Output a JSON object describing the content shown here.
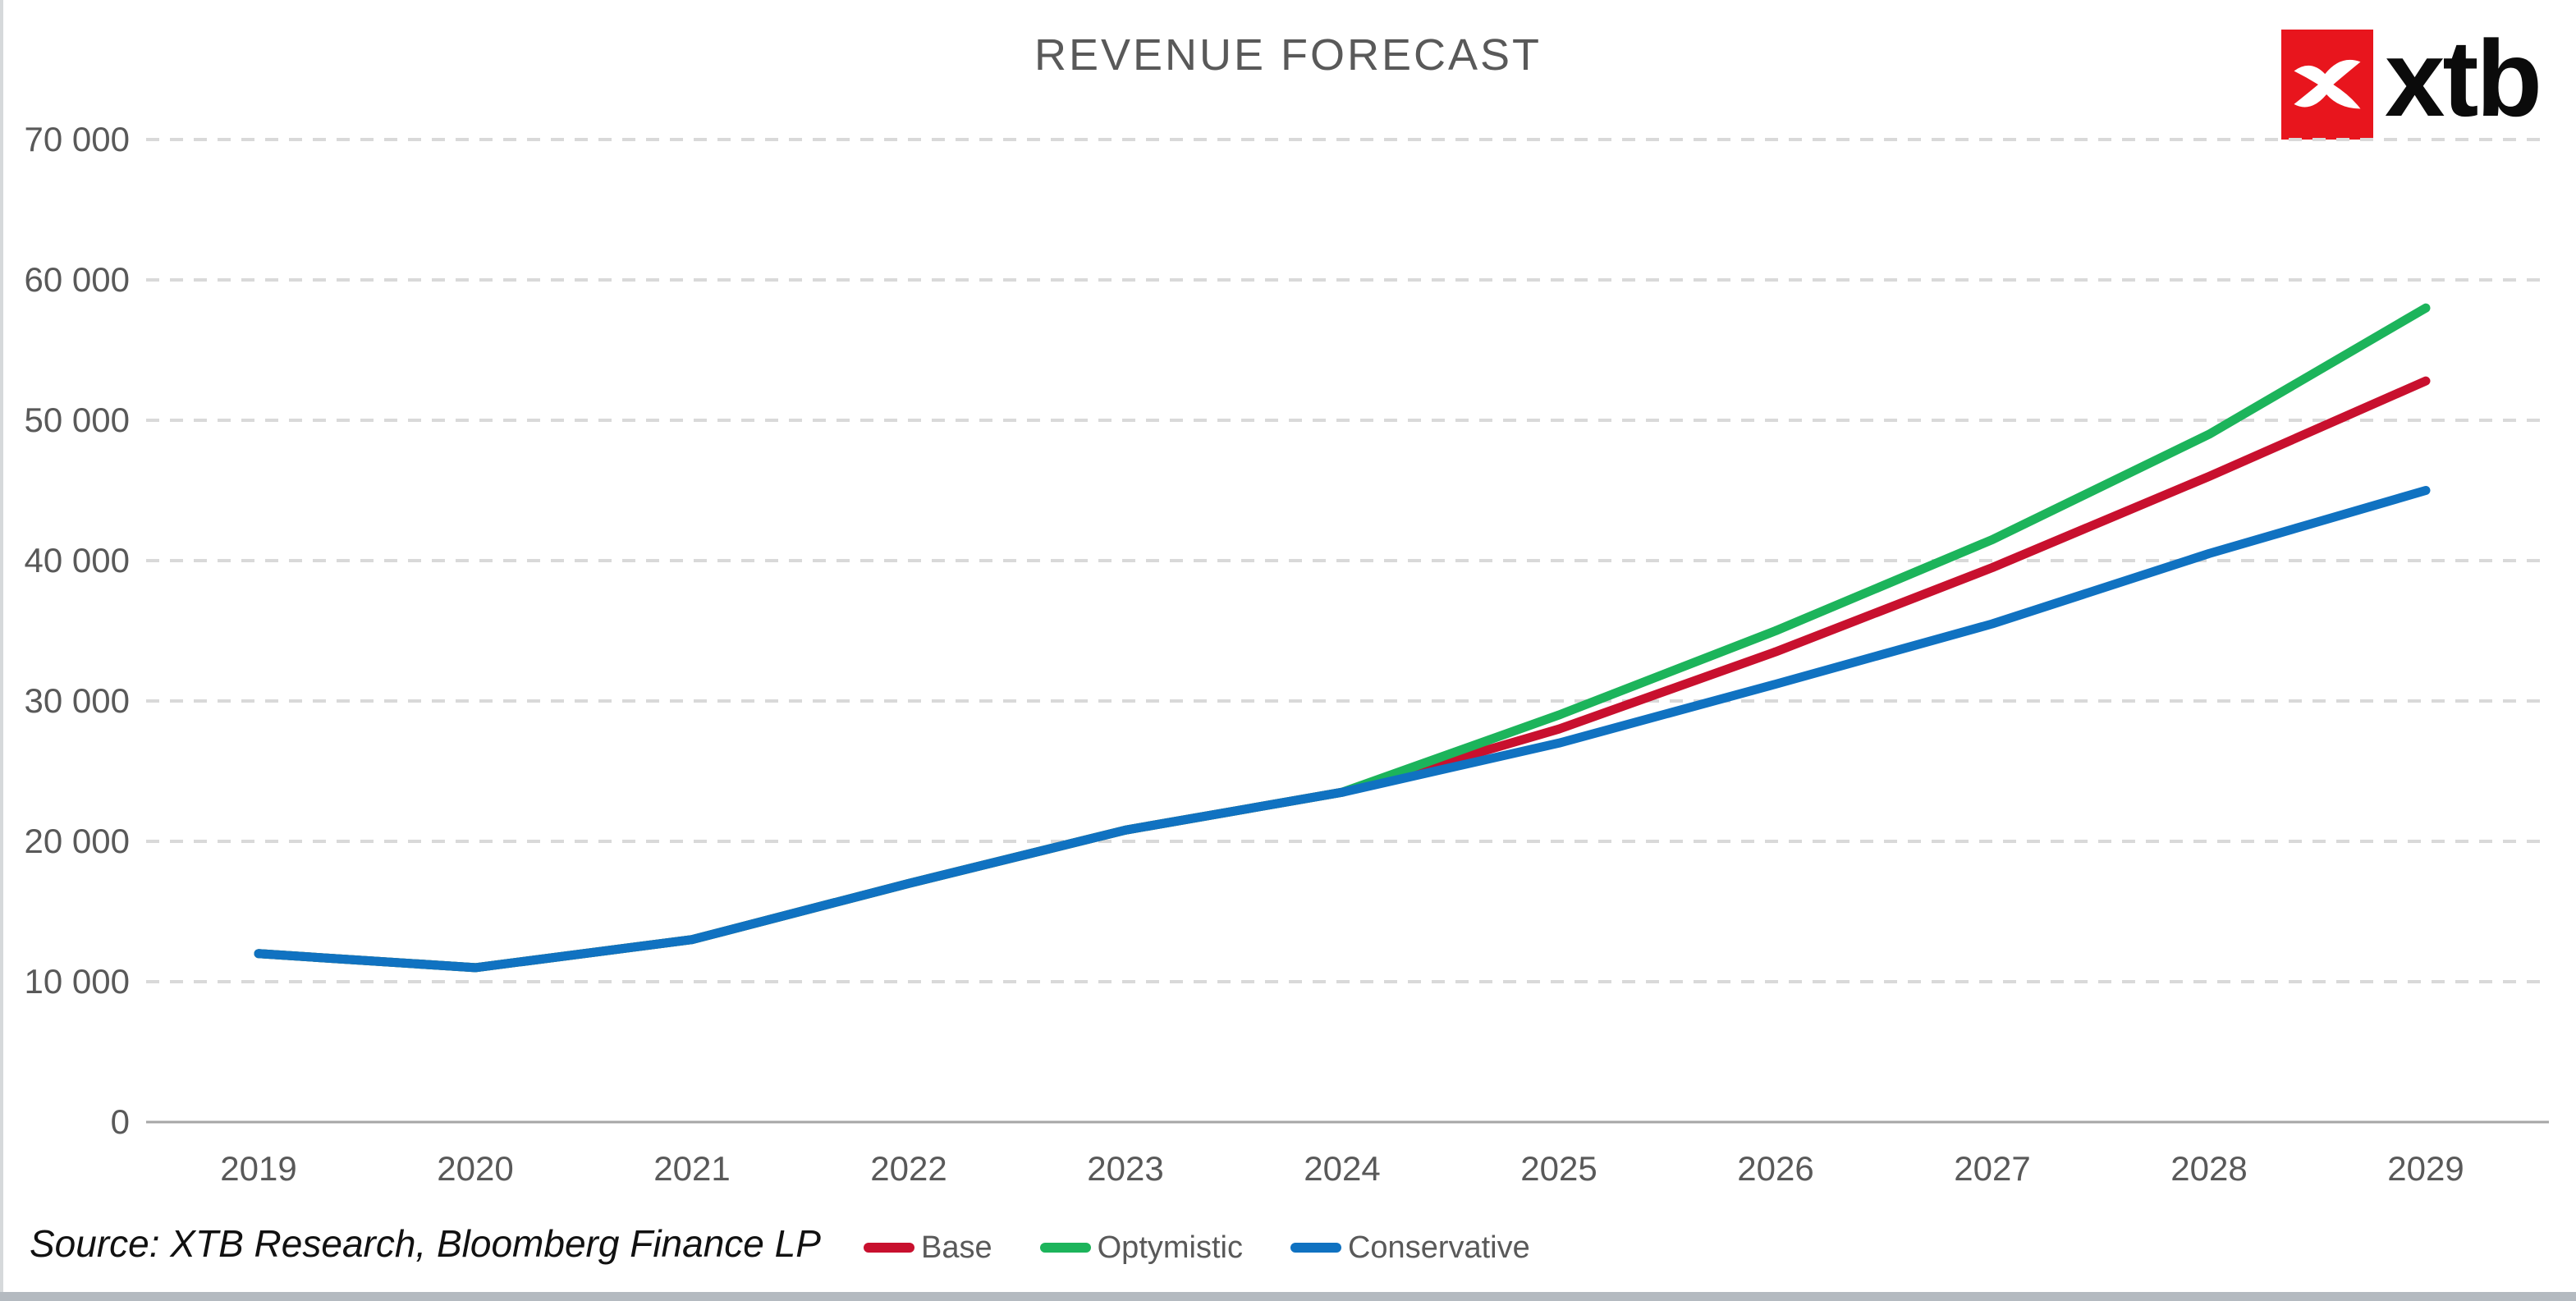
{
  "logo": {
    "text": "xtb",
    "box_color": "#e8151d",
    "mark": "xtb-x-mark"
  },
  "source_note": "Source: XTB Research, Bloomberg Finance LP",
  "colors": {
    "title_text": "#595959",
    "axis_labels": "#595959",
    "gridline": "#d9d9d9",
    "axis_line": "#a6a6a6",
    "base": "#c8102e",
    "optymistic": "#1cb45b",
    "conservative": "#1072c1"
  },
  "chart_data": {
    "type": "line",
    "title": "REVENUE FORECAST",
    "categories": [
      "2019",
      "2020",
      "2021",
      "2022",
      "2023",
      "2024",
      "2025",
      "2026",
      "2027",
      "2028",
      "2029"
    ],
    "series": [
      {
        "name": "Base",
        "color": "#c8102e",
        "values": [
          12000,
          11000,
          13000,
          17000,
          20800,
          23500,
          28000,
          33500,
          39500,
          46000,
          52800
        ]
      },
      {
        "name": "Optymistic",
        "color": "#1cb45b",
        "values": [
          12000,
          11000,
          13000,
          17000,
          20800,
          23500,
          29000,
          35000,
          41500,
          49000,
          58000
        ]
      },
      {
        "name": "Conservative",
        "color": "#1072c1",
        "values": [
          12000,
          11000,
          13000,
          17000,
          20800,
          23500,
          27000,
          31200,
          35500,
          40500,
          45000
        ]
      }
    ],
    "draw_order": [
      "Base",
      "Optymistic",
      "Conservative"
    ],
    "ylim": [
      0,
      70000
    ],
    "ytick_step": 10000,
    "y_ticks": [
      {
        "value": 0,
        "label": "0"
      },
      {
        "value": 10000,
        "label": "10 000"
      },
      {
        "value": 20000,
        "label": "20 000"
      },
      {
        "value": 30000,
        "label": "30 000"
      },
      {
        "value": 40000,
        "label": "40 000"
      },
      {
        "value": 50000,
        "label": "50 000"
      },
      {
        "value": 60000,
        "label": "60 000"
      },
      {
        "value": 70000,
        "label": "70 000"
      },
      {
        "value": 70000,
        "label": "70 000"
      }
    ],
    "xlabel": "",
    "ylabel": "",
    "grid": "horizontal-dashed",
    "legend_position": "bottom-center",
    "note": "historical 2019-2024 identical for all series; forecasts diverge from 2024"
  }
}
